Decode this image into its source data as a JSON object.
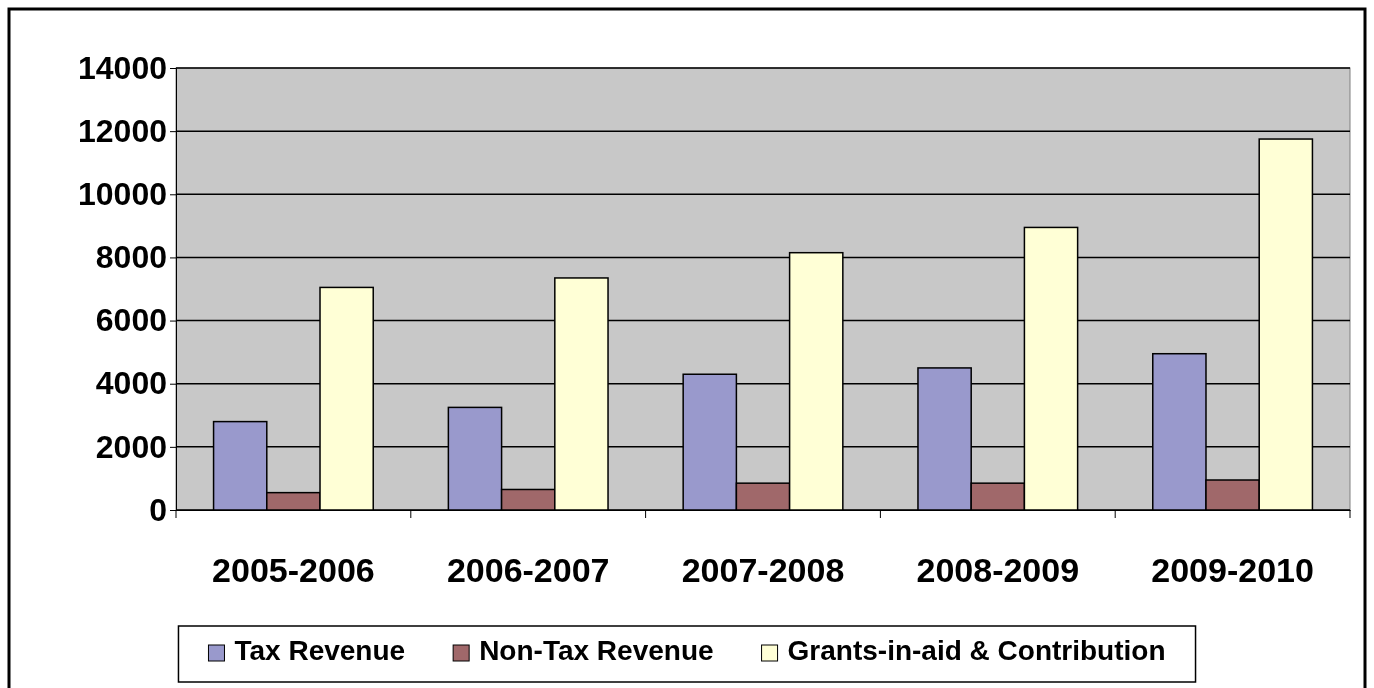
{
  "chart_data": {
    "type": "bar",
    "categories": [
      "2005-2006",
      "2006-2007",
      "2007-2008",
      "2008-2009",
      "2009-2010"
    ],
    "series": [
      {
        "name": "Tax Revenue",
        "color": "#9999cc",
        "values": [
          2800,
          3250,
          4300,
          4500,
          4950
        ]
      },
      {
        "name": "Non-Tax Revenue",
        "color": "#a0686a",
        "values": [
          550,
          650,
          850,
          850,
          950
        ]
      },
      {
        "name": "Grants-in-aid & Contribution",
        "color": "#ffffd6",
        "values": [
          7050,
          7350,
          8150,
          8950,
          11750
        ]
      }
    ],
    "ylim": [
      0,
      14000
    ],
    "yticks": [
      0,
      2000,
      4000,
      6000,
      8000,
      10000,
      12000,
      14000
    ],
    "grid": "y",
    "legend": "bottom"
  }
}
